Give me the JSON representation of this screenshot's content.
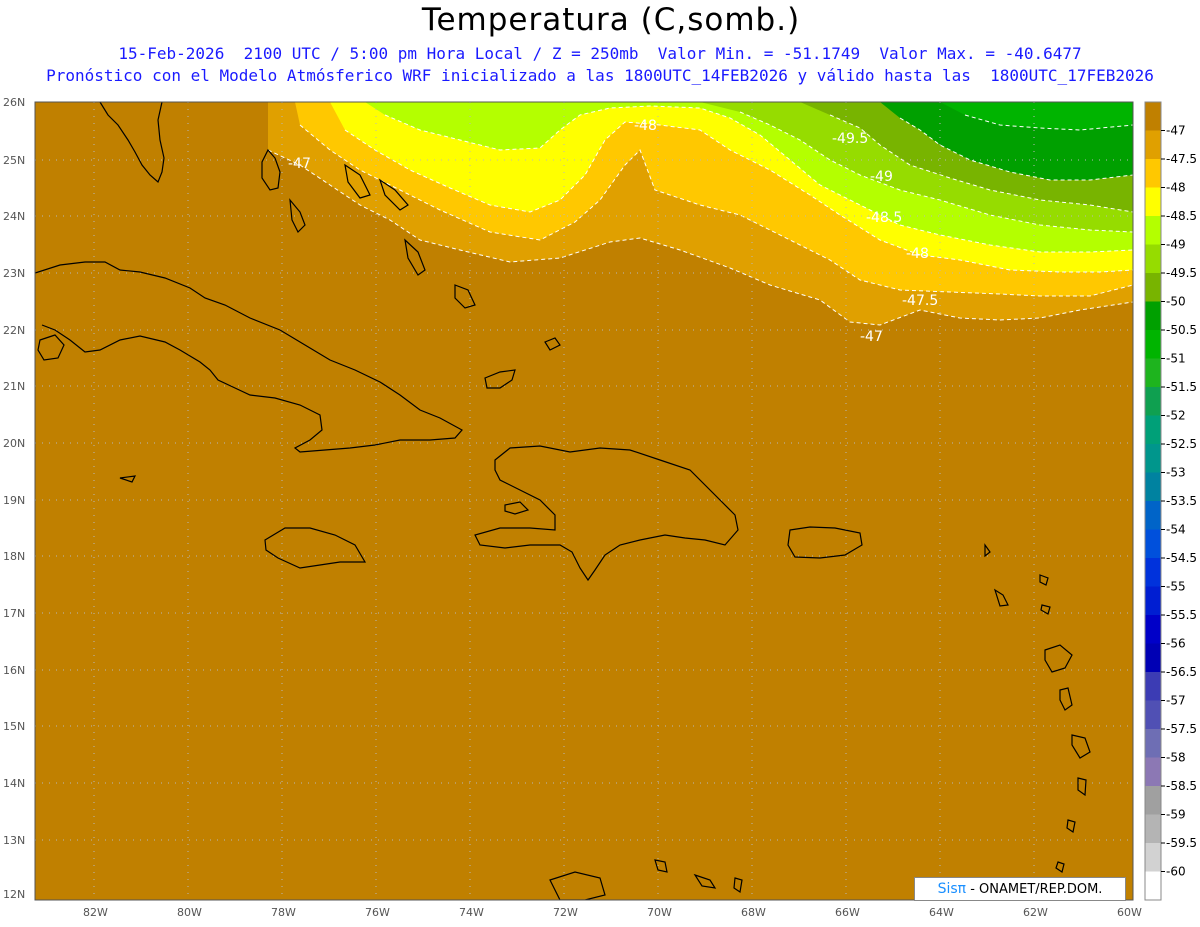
{
  "header": {
    "title": "Temperatura (C,somb.)",
    "line1": "15-Feb-2026  2100 UTC / 5:00 pm Hora Local / Z = 250mb  Valor Min. = -51.1749  Valor Max. = -40.6477",
    "line2": "Pronóstico con el Modelo Atmósferico WRF inicializado a las 1800UTC_14FEB2026 y válido hasta las  1800UTC_17FEB2026"
  },
  "map": {
    "lon_range": [
      -83.3,
      -60.0
    ],
    "lat_range": [
      11.9,
      26.1
    ],
    "lon_ticks": [
      "82W",
      "80W",
      "78W",
      "76W",
      "74W",
      "72W",
      "70W",
      "68W",
      "66W",
      "64W",
      "62W",
      "60W"
    ],
    "lat_ticks": [
      "26N",
      "25N",
      "24N",
      "23N",
      "22N",
      "21N",
      "20N",
      "19N",
      "18N",
      "17N",
      "16N",
      "15N",
      "14N",
      "13N",
      "12N"
    ],
    "contour_labels": [
      "-48",
      "-49.5",
      "-47",
      "-49",
      "-48.5",
      "-48",
      "-47.5",
      "-47"
    ],
    "base_color": "#c08000"
  },
  "colorbar": {
    "labels": [
      "-47",
      "-47.5",
      "-48",
      "-48.5",
      "-49",
      "-49.5",
      "-50",
      "-50.5",
      "-51",
      "-51.5",
      "-52",
      "-52.5",
      "-53",
      "-53.5",
      "-54",
      "-54.5",
      "-55",
      "-55.5",
      "-56",
      "-56.5",
      "-57",
      "-57.5",
      "-58",
      "-58.5",
      "-59",
      "-59.5",
      "-60"
    ],
    "colors": [
      "#c08000",
      "#e0a000",
      "#ffc800",
      "#ffff00",
      "#b4ff00",
      "#96dc00",
      "#78b400",
      "#00a000",
      "#00b400",
      "#1eb41e",
      "#0fa050",
      "#00a078",
      "#00968c",
      "#0082a0",
      "#0064c8",
      "#0050dc",
      "#0032dc",
      "#001ed2",
      "#0000c8",
      "#0000b4",
      "#3c3cb4",
      "#5050b4",
      "#6e6eb4",
      "#8c78b4",
      "#a0a0a0",
      "#b4b4b4",
      "#d2d2d2",
      "#ffffff"
    ]
  },
  "credit": {
    "logo": "Sisπ",
    "text": " - ONAMET/REP.DOM."
  }
}
